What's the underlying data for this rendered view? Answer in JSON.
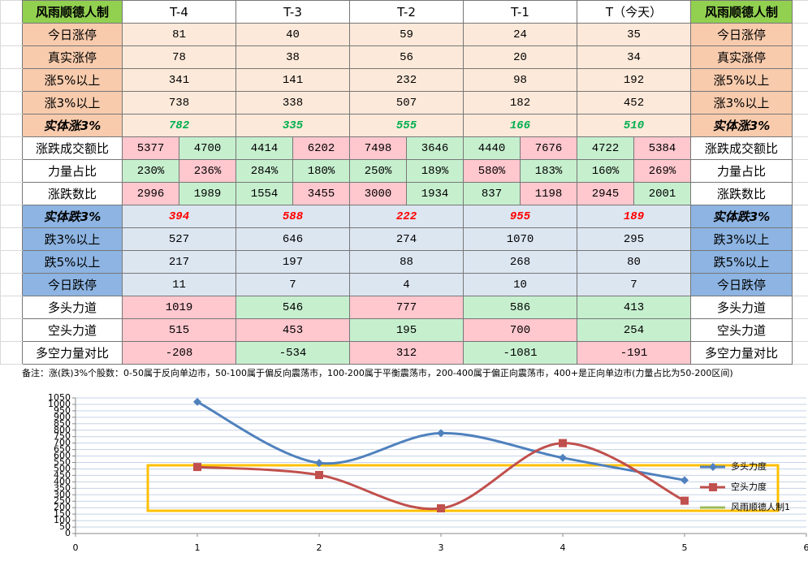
{
  "table": {
    "header": [
      "风雨顺德人制",
      "T-4",
      "T-3",
      "T-2",
      "T-1",
      "T（今天）",
      "风雨顺德人制"
    ],
    "rows": [
      {
        "label": "今日涨停",
        "values": [
          81,
          40,
          59,
          24,
          35
        ],
        "theme": "up"
      },
      {
        "label": "真实涨停",
        "values": [
          78,
          38,
          56,
          20,
          34
        ],
        "theme": "up"
      },
      {
        "label": "涨5%以上",
        "values": [
          341,
          141,
          232,
          98,
          192
        ],
        "theme": "up"
      },
      {
        "label": "涨3%以上",
        "values": [
          738,
          338,
          507,
          182,
          452
        ],
        "theme": "up"
      },
      {
        "label": "实体涨3%",
        "values": [
          782,
          335,
          555,
          166,
          510
        ],
        "theme": "up",
        "emph": true
      },
      {
        "label": "涨跌成交额比",
        "values": [
          5377,
          4700,
          4414,
          6202,
          7498,
          3646,
          4440,
          7676,
          4722,
          5384
        ],
        "theme": "plain",
        "cells": [
          "p",
          "g",
          "g",
          "p",
          "p",
          "g",
          "g",
          "p",
          "g",
          "p"
        ]
      },
      {
        "label": "力量占比",
        "values": [
          "230%",
          "236%",
          "284%",
          "180%",
          "250%",
          "189%",
          "580%",
          "183%",
          "160%",
          "269%"
        ],
        "theme": "plain",
        "cells": [
          "g",
          "p",
          "g",
          "g",
          "g",
          "g",
          "p",
          "g",
          "g",
          "p"
        ]
      },
      {
        "label": "涨跌数比",
        "values": [
          2996,
          1989,
          1554,
          3455,
          3000,
          1934,
          837,
          1198,
          2945,
          2001
        ],
        "theme": "plain",
        "cells": [
          "p",
          "g",
          "g",
          "p",
          "p",
          "g",
          "g",
          "p",
          "p",
          "g"
        ]
      },
      {
        "label": "实体跌3%",
        "values": [
          394,
          588,
          222,
          955,
          189
        ],
        "theme": "down",
        "emph": true
      },
      {
        "label": "跌3%以上",
        "values": [
          527,
          646,
          274,
          1070,
          295
        ],
        "theme": "down"
      },
      {
        "label": "跌5%以上",
        "values": [
          217,
          197,
          88,
          268,
          80
        ],
        "theme": "down"
      },
      {
        "label": "今日跌停",
        "values": [
          11,
          7,
          4,
          10,
          7
        ],
        "theme": "down"
      },
      {
        "label": "多头力道",
        "values": [
          1019,
          546,
          777,
          586,
          413
        ],
        "theme": "plain",
        "cells": [
          "p",
          "g",
          "p",
          "g",
          "g"
        ]
      },
      {
        "label": "空头力道",
        "values": [
          515,
          453,
          195,
          700,
          254
        ],
        "theme": "plain",
        "cells": [
          "p",
          "p",
          "g",
          "p",
          "g"
        ]
      },
      {
        "label": "多空力量对比",
        "values": [
          -208,
          -534,
          312,
          -1081,
          -191
        ],
        "theme": "plain",
        "cells": [
          "p",
          "g",
          "p",
          "g",
          "p"
        ]
      }
    ],
    "note": "备注：涨(跌)3%个股数：0-50属于反向单边市，50-100属于偏反向震荡市，100-200属于平衡震荡市，200-400属于偏正向震荡市，400+是正向单边市(力量占比为50-200区间)"
  },
  "chart_data": {
    "type": "line",
    "x": [
      1,
      2,
      3,
      4,
      5
    ],
    "series": [
      {
        "name": "多头力度",
        "color": "#4f81bd",
        "marker": "diamond",
        "values": [
          1019,
          546,
          777,
          586,
          413
        ]
      },
      {
        "name": "空头力度",
        "color": "#c0504d",
        "marker": "square",
        "values": [
          515,
          453,
          195,
          700,
          254
        ]
      },
      {
        "name": "风雨顺德人制1",
        "color": "#9bbb59",
        "values": [
          null,
          null,
          null,
          null,
          null
        ]
      }
    ],
    "xlim": [
      0,
      6
    ],
    "xticks": [
      0,
      1,
      2,
      3,
      4,
      5,
      6
    ],
    "ylim": [
      0,
      1050
    ],
    "yticks": [
      0,
      50,
      100,
      150,
      200,
      250,
      300,
      350,
      400,
      450,
      500,
      550,
      600,
      650,
      700,
      750,
      800,
      850,
      900,
      950,
      1000,
      1050
    ],
    "grid": true,
    "smooth": true,
    "legend": "right"
  }
}
